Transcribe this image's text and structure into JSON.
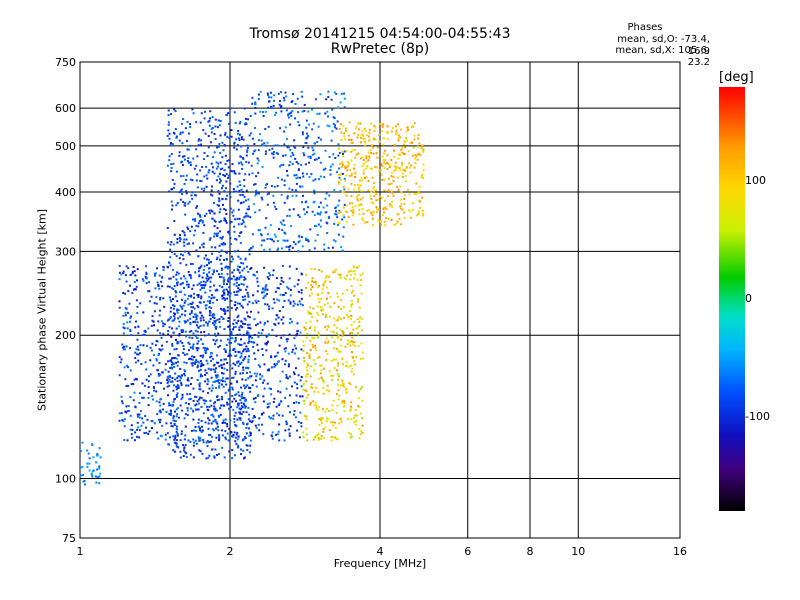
{
  "header": {
    "title_line1": "Tromsø 20141215 04:54:00-04:55:43",
    "title_line2": "RwPretec (8p)",
    "phases_heading": "Phases",
    "phases_o": "mean, sd,O: -73.4, 16.9",
    "phases_x": "mean, sd,X: 105.6, 23.2"
  },
  "chart_data": {
    "type": "scatter",
    "title": "Tromsø 20141215 04:54:00-04:55:43",
    "subtitle": "RwPretec (8p)",
    "xlabel": "Frequency [MHz]",
    "ylabel": "Stationary phase Virtual Height [km]",
    "x_scale": "log",
    "y_scale": "log",
    "xlim": [
      1,
      16
    ],
    "ylim": [
      75,
      750
    ],
    "x_ticks": [
      1,
      2,
      4,
      6,
      8,
      10,
      16
    ],
    "y_ticks": [
      75,
      100,
      200,
      300,
      400,
      500,
      600,
      750
    ],
    "grid": true,
    "colorbar": {
      "label": "[deg]",
      "ticks": [
        100,
        0,
        -100
      ],
      "range": [
        -180,
        180
      ],
      "colors": [
        "#ff0000",
        "#ff9a00",
        "#ffd800",
        "#c8f000",
        "#00cc00",
        "#00e0c8",
        "#00b4ff",
        "#0050ff",
        "#1010c0",
        "#400080",
        "#000000"
      ]
    },
    "point_groups": [
      {
        "x": [
          1.5,
          2.2
        ],
        "y": [
          110,
          600
        ],
        "phase": [
          -100,
          -60
        ],
        "density": "high"
      },
      {
        "x": [
          2.2,
          3.4
        ],
        "y": [
          300,
          650
        ],
        "phase": [
          -100,
          -40
        ],
        "density": "medium"
      },
      {
        "x": [
          3.3,
          4.9
        ],
        "y": [
          340,
          560
        ],
        "phase": [
          90,
          150
        ],
        "density": "medium"
      },
      {
        "x": [
          1.2,
          2.8
        ],
        "y": [
          120,
          280
        ],
        "phase": [
          -110,
          -50
        ],
        "density": "high"
      },
      {
        "x": [
          2.8,
          3.7
        ],
        "y": [
          120,
          280
        ],
        "phase": [
          60,
          150
        ],
        "density": "medium"
      },
      {
        "x": [
          1.0,
          1.1
        ],
        "y": [
          97,
          120
        ],
        "phase": [
          -70,
          -30
        ],
        "density": "low"
      }
    ]
  }
}
